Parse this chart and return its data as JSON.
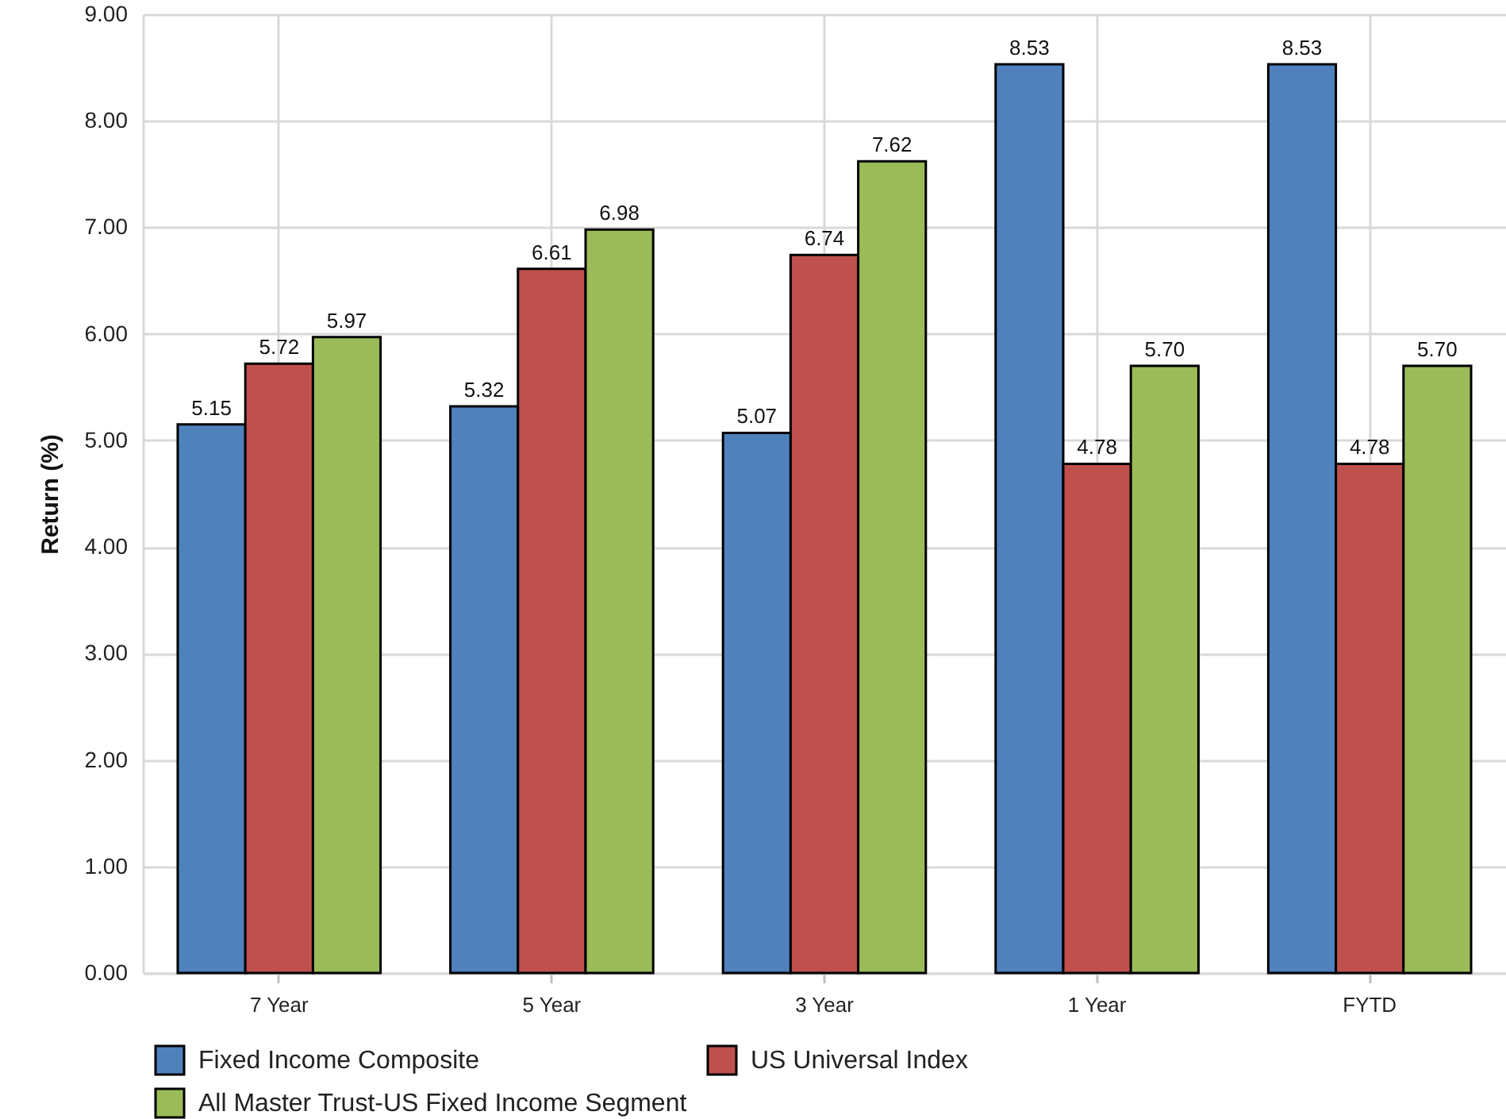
{
  "chart_data": {
    "type": "bar",
    "ylabel": "Return (%)",
    "categories": [
      "7 Year",
      "5 Year",
      "3 Year",
      "1 Year",
      "FYTD"
    ],
    "series": [
      {
        "name": "Fixed Income Composite",
        "color": "#4f81bd",
        "values": [
          5.15,
          5.32,
          5.07,
          8.53,
          8.53
        ],
        "value_labels": [
          "5.15",
          "5.32",
          "5.07",
          "8.53",
          "8.53"
        ]
      },
      {
        "name": "US Universal Index",
        "color": "#c0504d",
        "values": [
          5.72,
          6.61,
          6.74,
          4.78,
          4.78
        ],
        "value_labels": [
          "5.72",
          "6.61",
          "6.74",
          "4.78",
          "4.78"
        ]
      },
      {
        "name": "All Master Trust-US Fixed Income Segment",
        "color": "#9bbb59",
        "values": [
          5.97,
          6.98,
          7.62,
          5.7,
          5.7
        ],
        "value_labels": [
          "5.97",
          "6.98",
          "7.62",
          "5.70",
          "5.70"
        ]
      }
    ],
    "ylim": [
      0,
      9
    ],
    "yticks": [
      {
        "value": 0,
        "label": "0.00"
      },
      {
        "value": 1,
        "label": "1.00"
      },
      {
        "value": 2,
        "label": "2.00"
      },
      {
        "value": 3,
        "label": "3.00"
      },
      {
        "value": 4,
        "label": "4.00"
      },
      {
        "value": 5,
        "label": "5.00"
      },
      {
        "value": 6,
        "label": "6.00"
      },
      {
        "value": 7,
        "label": "7.00"
      },
      {
        "value": 8,
        "label": "8.00"
      },
      {
        "value": 9,
        "label": "9.00"
      }
    ],
    "grid": true,
    "legend": "bottom left"
  }
}
